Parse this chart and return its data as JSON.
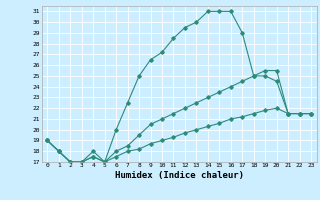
{
  "xlabel": "Humidex (Indice chaleur)",
  "bg_color": "#cceeff",
  "line_color": "#2d8b7a",
  "grid_color": "#ffffff",
  "xlim": [
    -0.5,
    23.5
  ],
  "ylim": [
    17,
    31.5
  ],
  "xticks": [
    0,
    1,
    2,
    3,
    4,
    5,
    6,
    7,
    8,
    9,
    10,
    11,
    12,
    13,
    14,
    15,
    16,
    17,
    18,
    19,
    20,
    21,
    22,
    23
  ],
  "yticks": [
    17,
    18,
    19,
    20,
    21,
    22,
    23,
    24,
    25,
    26,
    27,
    28,
    29,
    30,
    31
  ],
  "line1_y": [
    19,
    18,
    17,
    17,
    18,
    17,
    20,
    22.5,
    25,
    26.5,
    27.2,
    28.5,
    29.5,
    30,
    31,
    31,
    31,
    29,
    25,
    25,
    24.5,
    21.5,
    21.5,
    21.5
  ],
  "line2_y": [
    19,
    18,
    17,
    17,
    17.5,
    17,
    18,
    18.5,
    19.5,
    20.5,
    21,
    21.5,
    22,
    22.5,
    23,
    23.5,
    24,
    24.5,
    25,
    25.5,
    25.5,
    21.5,
    21.5,
    21.5
  ],
  "line3_y": [
    19,
    18,
    17,
    17,
    17.5,
    17,
    17.5,
    18,
    18.2,
    18.7,
    19,
    19.3,
    19.7,
    20,
    20.3,
    20.6,
    21,
    21.2,
    21.5,
    21.8,
    22,
    21.5,
    21.5,
    21.5
  ]
}
